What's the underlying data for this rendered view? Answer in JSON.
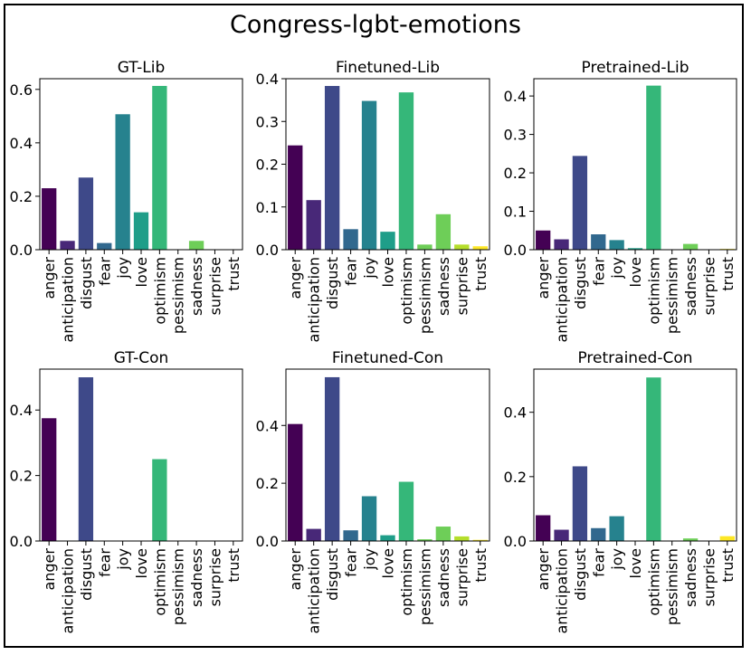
{
  "figure_title": "Congress-lgbt-emotions",
  "chart_data": [
    {
      "type": "bar",
      "title": "GT-Lib",
      "categories": [
        "anger",
        "anticipation",
        "disgust",
        "fear",
        "joy",
        "love",
        "optimism",
        "pessimism",
        "sadness",
        "surprise",
        "trust"
      ],
      "values": [
        0.23,
        0.033,
        0.27,
        0.025,
        0.507,
        0.14,
        0.613,
        0.0,
        0.033,
        0.0,
        0.0
      ],
      "ylim": [
        0,
        0.64
      ],
      "yticks": [
        0.0,
        0.2,
        0.4,
        0.6
      ],
      "ytick_labels": [
        "0.0",
        "0.2",
        "0.4",
        "0.6"
      ],
      "xlabel": "",
      "ylabel": ""
    },
    {
      "type": "bar",
      "title": "Finetuned-Lib",
      "categories": [
        "anger",
        "anticipation",
        "disgust",
        "fear",
        "joy",
        "love",
        "optimism",
        "pessimism",
        "sadness",
        "surprise",
        "trust"
      ],
      "values": [
        0.244,
        0.116,
        0.383,
        0.048,
        0.348,
        0.042,
        0.368,
        0.012,
        0.083,
        0.012,
        0.008
      ],
      "ylim": [
        0,
        0.4
      ],
      "yticks": [
        0.0,
        0.1,
        0.2,
        0.3,
        0.4
      ],
      "ytick_labels": [
        "0.0",
        "0.1",
        "0.2",
        "0.3",
        "0.4"
      ],
      "xlabel": "",
      "ylabel": ""
    },
    {
      "type": "bar",
      "title": "Pretrained-Lib",
      "categories": [
        "anger",
        "anticipation",
        "disgust",
        "fear",
        "joy",
        "love",
        "optimism",
        "pessimism",
        "sadness",
        "surprise",
        "trust"
      ],
      "values": [
        0.05,
        0.027,
        0.244,
        0.04,
        0.025,
        0.004,
        0.427,
        0.0,
        0.015,
        0.0,
        0.002
      ],
      "ylim": [
        0,
        0.445
      ],
      "yticks": [
        0.0,
        0.1,
        0.2,
        0.3,
        0.4
      ],
      "ytick_labels": [
        "0.0",
        "0.1",
        "0.2",
        "0.3",
        "0.4"
      ],
      "xlabel": "",
      "ylabel": ""
    },
    {
      "type": "bar",
      "title": "GT-Con",
      "categories": [
        "anger",
        "anticipation",
        "disgust",
        "fear",
        "joy",
        "love",
        "optimism",
        "pessimism",
        "sadness",
        "surprise",
        "trust"
      ],
      "values": [
        0.375,
        0.0,
        0.5,
        0.0,
        0.0,
        0.0,
        0.25,
        0.0,
        0.0,
        0.0,
        0.0
      ],
      "ylim": [
        0,
        0.525
      ],
      "yticks": [
        0.0,
        0.2,
        0.4
      ],
      "ytick_labels": [
        "0.0",
        "0.2",
        "0.4"
      ],
      "xlabel": "",
      "ylabel": ""
    },
    {
      "type": "bar",
      "title": "Finetuned-Con",
      "categories": [
        "anger",
        "anticipation",
        "disgust",
        "fear",
        "joy",
        "love",
        "optimism",
        "pessimism",
        "sadness",
        "surprise",
        "trust"
      ],
      "values": [
        0.405,
        0.042,
        0.567,
        0.037,
        0.155,
        0.02,
        0.205,
        0.006,
        0.05,
        0.016,
        0.004
      ],
      "ylim": [
        0,
        0.595
      ],
      "yticks": [
        0.0,
        0.2,
        0.4
      ],
      "ytick_labels": [
        "0.0",
        "0.2",
        "0.4"
      ],
      "xlabel": "",
      "ylabel": ""
    },
    {
      "type": "bar",
      "title": "Pretrained-Con",
      "categories": [
        "anger",
        "anticipation",
        "disgust",
        "fear",
        "joy",
        "love",
        "optimism",
        "pessimism",
        "sadness",
        "surprise",
        "trust"
      ],
      "values": [
        0.08,
        0.035,
        0.232,
        0.04,
        0.077,
        0.0,
        0.508,
        0.0,
        0.008,
        0.0,
        0.015
      ],
      "ylim": [
        0,
        0.534
      ],
      "yticks": [
        0.0,
        0.2,
        0.4
      ],
      "ytick_labels": [
        "0.0",
        "0.2",
        "0.4"
      ],
      "xlabel": "",
      "ylabel": ""
    }
  ],
  "colors": [
    "#440154",
    "#482878",
    "#3e4989",
    "#31688e",
    "#26828e",
    "#1f9e89",
    "#35b779",
    "#6ece58",
    "#6ece58",
    "#b5de2b",
    "#fde725"
  ]
}
